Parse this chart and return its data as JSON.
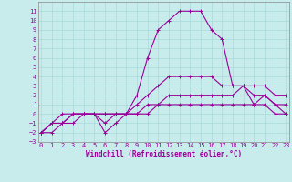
{
  "bg_color": "#c8ecec",
  "grid_color": "#a8d8d8",
  "line_color": "#990099",
  "x_values": [
    0,
    1,
    2,
    3,
    4,
    5,
    6,
    7,
    8,
    9,
    10,
    11,
    12,
    13,
    14,
    15,
    16,
    17,
    18,
    19,
    20,
    21,
    22,
    23
  ],
  "line1": [
    -2,
    -2,
    -1,
    -1,
    0,
    0,
    -2,
    -1,
    0,
    2,
    6,
    9,
    10,
    11,
    11,
    11,
    9,
    8,
    3,
    3,
    1,
    2,
    1,
    0
  ],
  "line2": [
    -2,
    -1,
    -1,
    0,
    0,
    0,
    -1,
    0,
    0,
    1,
    2,
    3,
    4,
    4,
    4,
    4,
    4,
    3,
    3,
    3,
    2,
    2,
    1,
    1
  ],
  "line3": [
    -2,
    -1,
    -1,
    0,
    0,
    0,
    0,
    0,
    0,
    0,
    0,
    1,
    1,
    1,
    1,
    1,
    1,
    1,
    1,
    1,
    1,
    1,
    0,
    0
  ],
  "line4": [
    -2,
    -1,
    0,
    0,
    0,
    0,
    0,
    0,
    0,
    0,
    1,
    1,
    2,
    2,
    2,
    2,
    2,
    2,
    2,
    3,
    3,
    3,
    2,
    2
  ],
  "ylim": [
    -3,
    12
  ],
  "xlim": [
    -0.3,
    23.3
  ],
  "yticks": [
    -3,
    -2,
    -1,
    0,
    1,
    2,
    3,
    4,
    5,
    6,
    7,
    8,
    9,
    10,
    11
  ],
  "xticks": [
    0,
    1,
    2,
    3,
    4,
    5,
    6,
    7,
    8,
    9,
    10,
    11,
    12,
    13,
    14,
    15,
    16,
    17,
    18,
    19,
    20,
    21,
    22,
    23
  ],
  "xlabel": "Windchill (Refroidissement éolien,°C)"
}
